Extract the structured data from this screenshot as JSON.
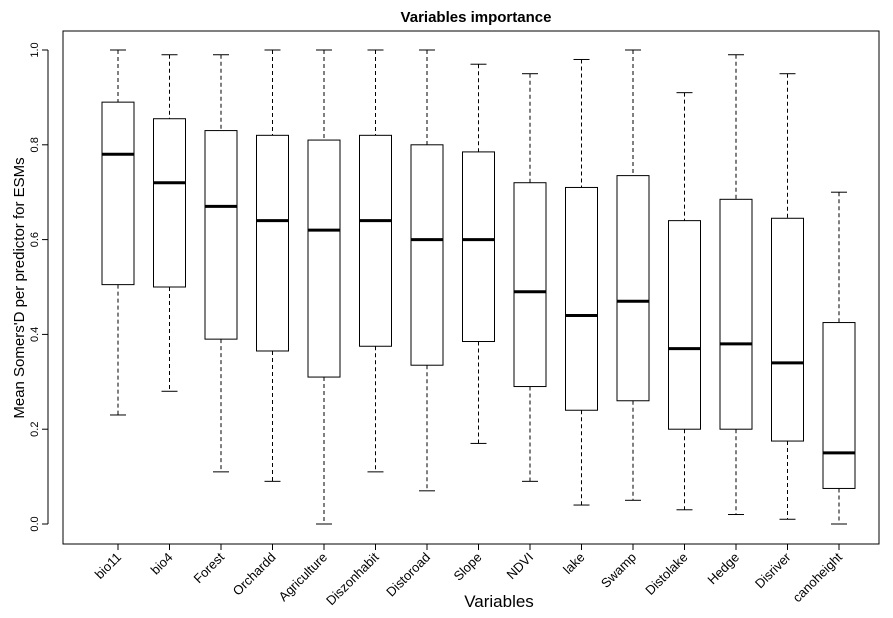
{
  "chart_data": {
    "type": "boxplot",
    "title": "Variables importance",
    "xlabel": "Variables",
    "ylabel": "Mean Somers'D per predictor for ESMs",
    "ylim": [
      0,
      1
    ],
    "yticks": [
      "0.0",
      "0.2",
      "0.4",
      "0.6",
      "0.8",
      "1.0"
    ],
    "grid": false,
    "categories": [
      "bio11",
      "bio4",
      "Forest",
      "Orchardd",
      "Agriculture",
      "Diszonhabit",
      "Distoroad",
      "Slope",
      "NDVI",
      "lake",
      "Swamp",
      "Distolake",
      "Hedge",
      "Disriver",
      "canoheight"
    ],
    "boxes": [
      {
        "min": 0.23,
        "q1": 0.505,
        "median": 0.78,
        "q3": 0.89,
        "max": 1.0
      },
      {
        "min": 0.28,
        "q1": 0.5,
        "median": 0.72,
        "q3": 0.855,
        "max": 0.99
      },
      {
        "min": 0.11,
        "q1": 0.39,
        "median": 0.67,
        "q3": 0.83,
        "max": 0.99
      },
      {
        "min": 0.09,
        "q1": 0.365,
        "median": 0.64,
        "q3": 0.82,
        "max": 1.0
      },
      {
        "min": 0.0,
        "q1": 0.31,
        "median": 0.62,
        "q3": 0.81,
        "max": 1.0
      },
      {
        "min": 0.11,
        "q1": 0.375,
        "median": 0.64,
        "q3": 0.82,
        "max": 1.0
      },
      {
        "min": 0.07,
        "q1": 0.335,
        "median": 0.6,
        "q3": 0.8,
        "max": 1.0
      },
      {
        "min": 0.17,
        "q1": 0.385,
        "median": 0.6,
        "q3": 0.785,
        "max": 0.97
      },
      {
        "min": 0.09,
        "q1": 0.29,
        "median": 0.49,
        "q3": 0.72,
        "max": 0.95
      },
      {
        "min": 0.04,
        "q1": 0.24,
        "median": 0.44,
        "q3": 0.71,
        "max": 0.98
      },
      {
        "min": 0.05,
        "q1": 0.26,
        "median": 0.47,
        "q3": 0.735,
        "max": 1.0
      },
      {
        "min": 0.03,
        "q1": 0.2,
        "median": 0.37,
        "q3": 0.64,
        "max": 0.91
      },
      {
        "min": 0.02,
        "q1": 0.2,
        "median": 0.38,
        "q3": 0.685,
        "max": 0.99
      },
      {
        "min": 0.01,
        "q1": 0.175,
        "median": 0.34,
        "q3": 0.645,
        "max": 0.95
      },
      {
        "min": 0.0,
        "q1": 0.075,
        "median": 0.15,
        "q3": 0.425,
        "max": 0.7
      }
    ]
  }
}
